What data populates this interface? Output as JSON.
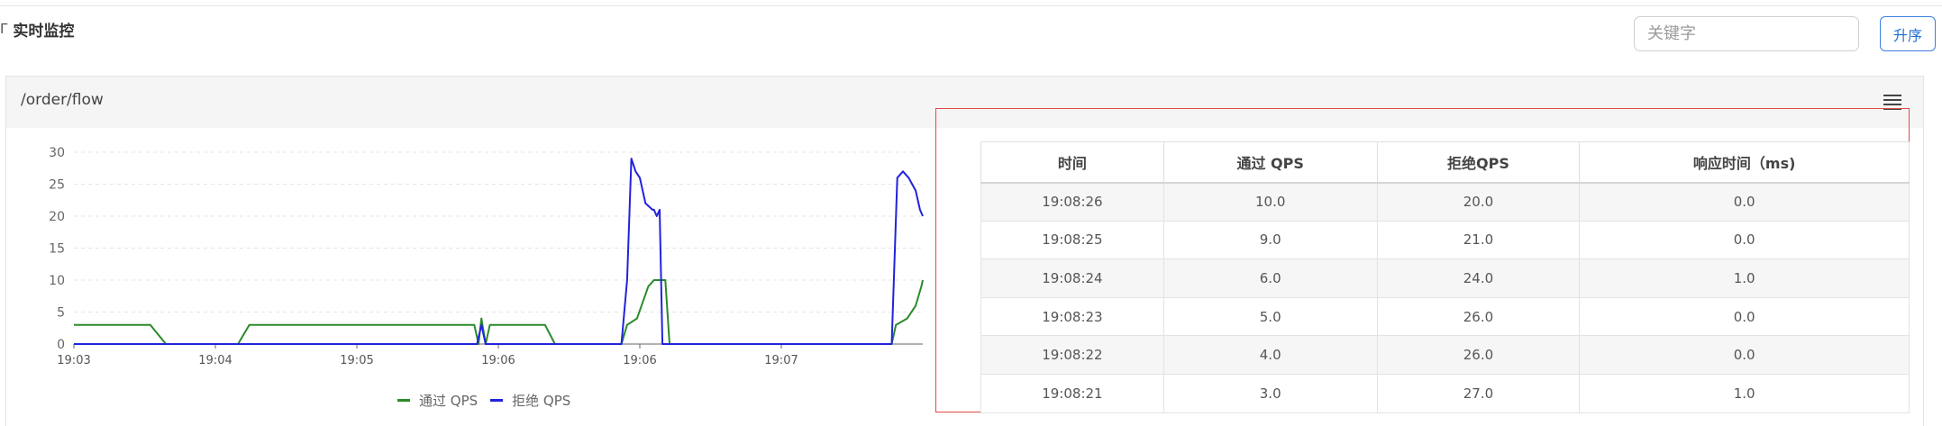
{
  "header": {
    "title": "实时监控",
    "search_placeholder": "关键字",
    "sort_label": "升序"
  },
  "panel": {
    "title": "/order/flow"
  },
  "legend": {
    "pass": "通过 QPS",
    "block": "拒绝 QPS"
  },
  "colors": {
    "pass": "#2a8a2a",
    "block": "#2222dd",
    "highlight": "#e04a4a",
    "accent": "#1f6fd9"
  },
  "icons": {
    "title": "filter-icon",
    "panel_menu": "menu-icon"
  },
  "chart_data": {
    "type": "line",
    "x_ticks": [
      "19:03",
      "19:04",
      "19:05",
      "19:06",
      "19:06",
      "19:07"
    ],
    "y_ticks": [
      0,
      5,
      10,
      15,
      20,
      25,
      30
    ],
    "ylim": [
      0,
      30
    ],
    "grid": true,
    "legend_position": "bottom",
    "series": [
      {
        "name": "通过 QPS",
        "color": "#2a8a2a",
        "points": [
          [
            0,
            3
          ],
          [
            5.4,
            3
          ],
          [
            6.5,
            0
          ],
          [
            11.6,
            0
          ],
          [
            12.4,
            3
          ],
          [
            28.3,
            3
          ],
          [
            28.6,
            0
          ],
          [
            28.8,
            4
          ],
          [
            29.1,
            0
          ],
          [
            29.4,
            3
          ],
          [
            33.3,
            3
          ],
          [
            34.0,
            0
          ],
          [
            38.7,
            0
          ],
          [
            39.1,
            3
          ],
          [
            39.8,
            4
          ],
          [
            40.6,
            9
          ],
          [
            41.0,
            10
          ],
          [
            41.8,
            10
          ],
          [
            42.1,
            0
          ],
          [
            57.8,
            0
          ],
          [
            58.1,
            3
          ],
          [
            58.9,
            4
          ],
          [
            59.5,
            6
          ],
          [
            59.9,
            9
          ],
          [
            60.0,
            10
          ]
        ]
      },
      {
        "name": "拒绝 QPS",
        "color": "#2222dd",
        "points": [
          [
            0,
            0
          ],
          [
            28.5,
            0
          ],
          [
            28.8,
            3
          ],
          [
            29.1,
            0
          ],
          [
            38.7,
            0
          ],
          [
            39.1,
            10
          ],
          [
            39.4,
            29
          ],
          [
            39.7,
            27
          ],
          [
            40.0,
            26
          ],
          [
            40.4,
            22
          ],
          [
            40.9,
            21
          ],
          [
            41.0,
            21
          ],
          [
            41.2,
            20
          ],
          [
            41.4,
            21
          ],
          [
            41.6,
            0
          ],
          [
            57.8,
            0
          ],
          [
            58.2,
            26
          ],
          [
            58.6,
            27
          ],
          [
            59.0,
            26
          ],
          [
            59.5,
            24
          ],
          [
            59.8,
            21
          ],
          [
            60.0,
            20
          ]
        ]
      }
    ]
  },
  "table": {
    "columns": [
      "时间",
      "通过 QPS",
      "拒绝QPS",
      "响应时间（ms)"
    ],
    "rows": [
      [
        "19:08:26",
        "10.0",
        "20.0",
        "0.0"
      ],
      [
        "19:08:25",
        "9.0",
        "21.0",
        "0.0"
      ],
      [
        "19:08:24",
        "6.0",
        "24.0",
        "1.0"
      ],
      [
        "19:08:23",
        "5.0",
        "26.0",
        "0.0"
      ],
      [
        "19:08:22",
        "4.0",
        "26.0",
        "0.0"
      ],
      [
        "19:08:21",
        "3.0",
        "27.0",
        "1.0"
      ]
    ]
  }
}
